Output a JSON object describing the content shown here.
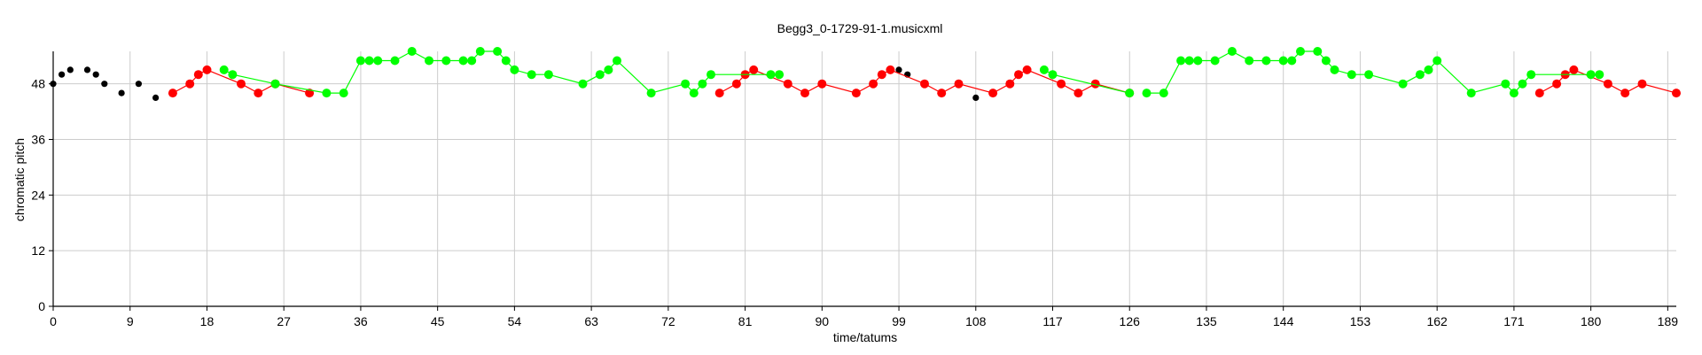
{
  "chart_data": {
    "type": "scatter",
    "title": "Begg3_0-1729-91-1.musicxml",
    "xlabel": "time/tatums",
    "ylabel": "chromatic pitch",
    "xlim": [
      0,
      190
    ],
    "ylim": [
      0,
      55
    ],
    "xticks": [
      0,
      9,
      18,
      27,
      36,
      45,
      54,
      63,
      72,
      81,
      90,
      99,
      108,
      117,
      126,
      135,
      144,
      153,
      162,
      171,
      180,
      189
    ],
    "yticks": [
      0,
      12,
      24,
      36,
      48
    ],
    "grid": true,
    "series": [
      {
        "color": "#000000",
        "connected": false,
        "points": [
          [
            0,
            48
          ],
          [
            1,
            50
          ],
          [
            2,
            51
          ],
          [
            4,
            51
          ],
          [
            5,
            50
          ],
          [
            6,
            48
          ],
          [
            8,
            46
          ],
          [
            10,
            48
          ],
          [
            12,
            45
          ],
          [
            99,
            51
          ],
          [
            100,
            50
          ],
          [
            108,
            45
          ]
        ]
      },
      {
        "color": "#ff0000",
        "connected": true,
        "segments": [
          [
            [
              14,
              46
            ],
            [
              16,
              48
            ],
            [
              17,
              50
            ],
            [
              18,
              51
            ],
            [
              22,
              48
            ],
            [
              24,
              46
            ],
            [
              26,
              48
            ],
            [
              30,
              46
            ]
          ],
          [
            [
              78,
              46
            ],
            [
              80,
              48
            ],
            [
              81,
              50
            ],
            [
              82,
              51
            ],
            [
              86,
              48
            ],
            [
              88,
              46
            ],
            [
              90,
              48
            ],
            [
              94,
              46
            ],
            [
              96,
              48
            ],
            [
              97,
              50
            ],
            [
              98,
              51
            ],
            [
              102,
              48
            ],
            [
              104,
              46
            ],
            [
              106,
              48
            ],
            [
              110,
              46
            ],
            [
              112,
              48
            ],
            [
              113,
              50
            ],
            [
              114,
              51
            ],
            [
              118,
              48
            ],
            [
              120,
              46
            ],
            [
              122,
              48
            ],
            [
              126,
              46
            ]
          ],
          [
            [
              174,
              46
            ],
            [
              176,
              48
            ],
            [
              177,
              50
            ],
            [
              178,
              51
            ],
            [
              182,
              48
            ],
            [
              184,
              46
            ],
            [
              186,
              48
            ],
            [
              190,
              46
            ]
          ]
        ]
      },
      {
        "color": "#00ff00",
        "connected": true,
        "segments": [
          [
            [
              20,
              51
            ],
            [
              21,
              50
            ],
            [
              26,
              48
            ],
            [
              32,
              46
            ],
            [
              34,
              46
            ],
            [
              36,
              53
            ],
            [
              37,
              53
            ],
            [
              38,
              53
            ],
            [
              40,
              53
            ],
            [
              42,
              55
            ],
            [
              44,
              53
            ],
            [
              46,
              53
            ],
            [
              48,
              53
            ],
            [
              49,
              53
            ],
            [
              50,
              55
            ],
            [
              52,
              55
            ],
            [
              53,
              53
            ],
            [
              54,
              51
            ],
            [
              56,
              50
            ],
            [
              58,
              50
            ],
            [
              62,
              48
            ],
            [
              64,
              50
            ],
            [
              65,
              51
            ],
            [
              66,
              53
            ],
            [
              70,
              46
            ],
            [
              74,
              48
            ],
            [
              75,
              46
            ],
            [
              76,
              48
            ],
            [
              77,
              50
            ],
            [
              84,
              50
            ],
            [
              85,
              50
            ]
          ],
          [
            [
              116,
              51
            ],
            [
              117,
              50
            ],
            [
              126,
              46
            ]
          ],
          [
            [
              128,
              46
            ],
            [
              130,
              46
            ],
            [
              132,
              53
            ],
            [
              133,
              53
            ],
            [
              134,
              53
            ],
            [
              136,
              53
            ],
            [
              138,
              55
            ],
            [
              140,
              53
            ],
            [
              142,
              53
            ],
            [
              144,
              53
            ],
            [
              145,
              53
            ],
            [
              146,
              55
            ],
            [
              148,
              55
            ],
            [
              149,
              53
            ],
            [
              150,
              51
            ],
            [
              152,
              50
            ],
            [
              154,
              50
            ],
            [
              158,
              48
            ],
            [
              160,
              50
            ],
            [
              161,
              51
            ],
            [
              162,
              53
            ],
            [
              166,
              46
            ],
            [
              170,
              48
            ],
            [
              171,
              46
            ],
            [
              172,
              48
            ],
            [
              173,
              50
            ],
            [
              180,
              50
            ],
            [
              181,
              50
            ]
          ]
        ]
      }
    ]
  }
}
